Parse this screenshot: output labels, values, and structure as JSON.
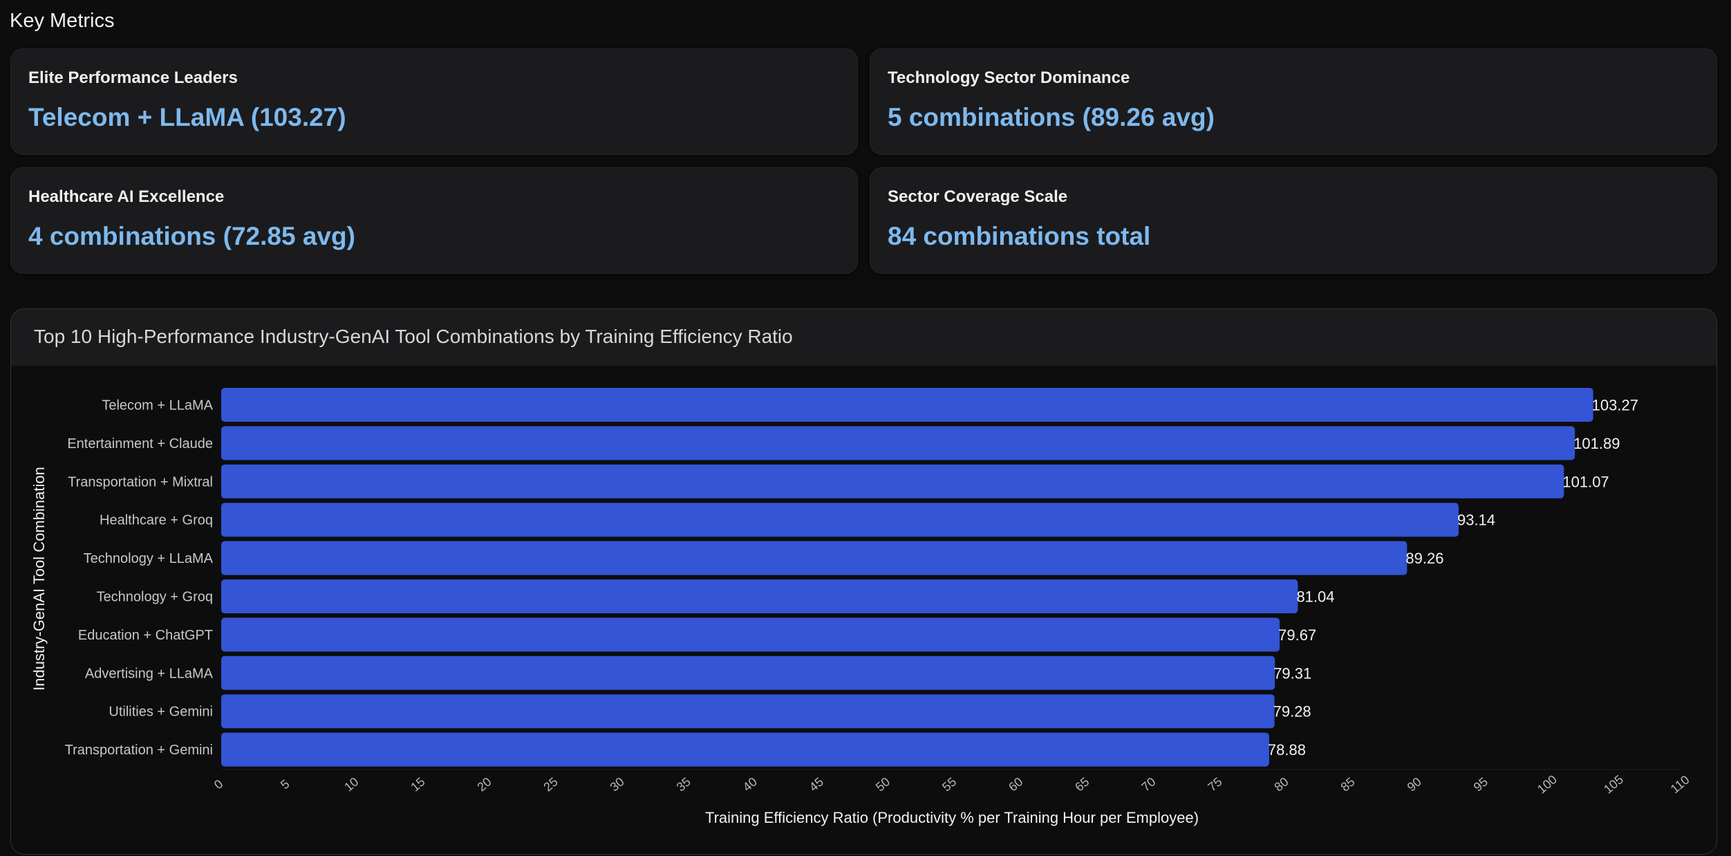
{
  "section": {
    "title": "Key Metrics"
  },
  "metrics": [
    {
      "label": "Elite Performance Leaders",
      "value": "Telecom + LLaMA (103.27)"
    },
    {
      "label": "Technology Sector Dominance",
      "value": "5 combinations (89.26 avg)"
    },
    {
      "label": "Healthcare AI Excellence",
      "value": "4 combinations (72.85 avg)"
    },
    {
      "label": "Sector Coverage Scale",
      "value": "84 combinations total"
    }
  ],
  "colors": {
    "bar": "#3355d6",
    "metric_value": "#7db9ee",
    "background": "#0d0d0d",
    "card": "#1b1b1d"
  },
  "chart_data": {
    "type": "bar",
    "orientation": "horizontal",
    "title": "Top 10 High-Performance Industry-GenAI Tool Combinations by Training Efficiency Ratio",
    "xlabel": "Training Efficiency Ratio (Productivity % per Training Hour per Employee)",
    "ylabel": "Industry-GenAI Tool Combination",
    "xlim": [
      0,
      110
    ],
    "xticks": [
      0,
      5,
      10,
      15,
      20,
      25,
      30,
      35,
      40,
      45,
      50,
      55,
      60,
      65,
      70,
      75,
      80,
      85,
      90,
      95,
      100,
      105,
      110
    ],
    "grid": false,
    "legend": "none",
    "categories": [
      "Telecom + LLaMA",
      "Entertainment + Claude",
      "Transportation + Mixtral",
      "Healthcare + Groq",
      "Technology + LLaMA",
      "Technology + Groq",
      "Education + ChatGPT",
      "Advertising + LLaMA",
      "Utilities + Gemini",
      "Transportation + Gemini"
    ],
    "values": [
      103.27,
      101.89,
      101.07,
      93.14,
      89.26,
      81.04,
      79.67,
      79.31,
      79.28,
      78.88
    ],
    "value_labels": [
      "103.27",
      "101.89",
      "101.07",
      "93.14",
      "89.26",
      "81.04",
      "79.67",
      "79.31",
      "79.28",
      "78.88"
    ]
  }
}
